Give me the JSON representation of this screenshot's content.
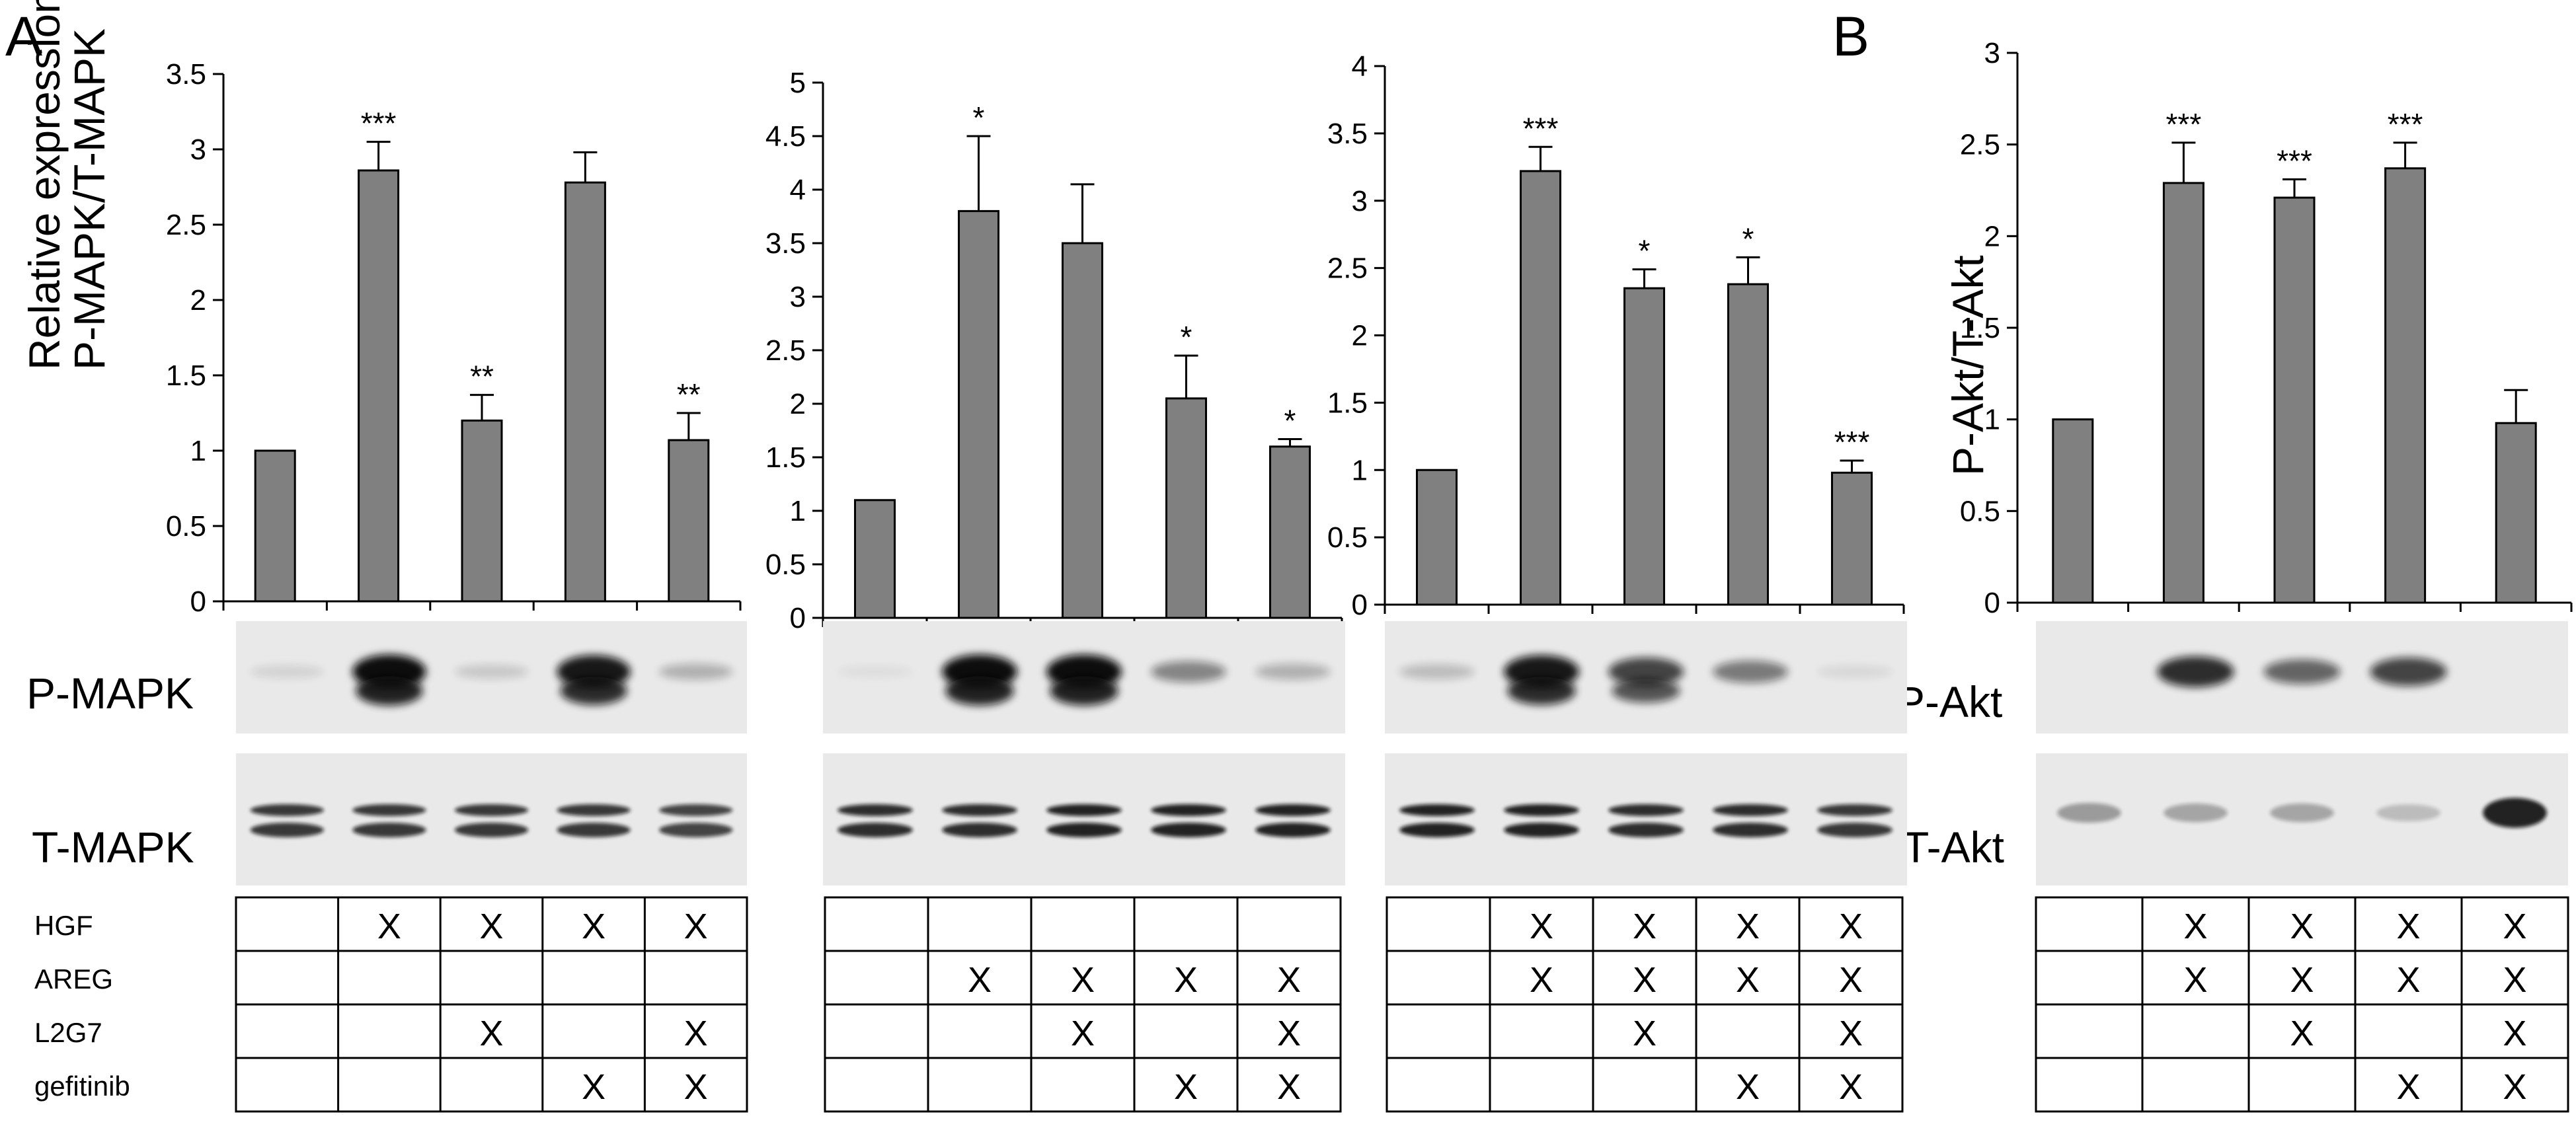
{
  "panel_labels": [
    "A",
    "B"
  ],
  "row_labels": [
    "HGF",
    "AREG",
    "L2G7",
    "gefitinib"
  ],
  "chart_data": [
    {
      "type": "bar",
      "panel": "A",
      "ylabel_line1": "Relative expression",
      "ylabel_line2": "P-MAPK/T-MAPK",
      "ylim": [
        0,
        3.5
      ],
      "yticks": [
        "0",
        "0.5",
        "1",
        "1.5",
        "2",
        "2.5",
        "3",
        "3.5"
      ],
      "ytick_values": [
        0,
        0.5,
        1,
        1.5,
        2,
        2.5,
        3,
        3.5
      ],
      "values": [
        1.0,
        2.86,
        1.2,
        2.78,
        1.07
      ],
      "errors": [
        0,
        0.19,
        0.17,
        0.2,
        0.18
      ],
      "significance": [
        "",
        "***",
        "**",
        "",
        "**"
      ],
      "bar_color": "#808080",
      "blot_labels": [
        "P-MAPK",
        "T-MAPK"
      ],
      "treatment": [
        [
          0,
          1,
          1,
          1,
          1
        ],
        [
          0,
          0,
          0,
          0,
          0
        ],
        [
          0,
          0,
          1,
          0,
          1
        ],
        [
          0,
          0,
          0,
          1,
          1
        ]
      ]
    },
    {
      "type": "bar",
      "panel": "A",
      "ylim": [
        0,
        5
      ],
      "yticks": [
        "0",
        "0.5",
        "1",
        "1.5",
        "2",
        "2.5",
        "3",
        "3.5",
        "4",
        "4.5",
        "5"
      ],
      "ytick_values": [
        0,
        0.5,
        1,
        1.5,
        2,
        2.5,
        3,
        3.5,
        4,
        4.5,
        5
      ],
      "values": [
        1.1,
        3.8,
        3.5,
        2.05,
        1.6
      ],
      "errors": [
        0,
        0.7,
        0.55,
        0.4,
        0.07
      ],
      "significance": [
        "",
        "*",
        "",
        "*",
        "*"
      ],
      "bar_color": "#808080",
      "blot_labels": [],
      "treatment": [
        [
          0,
          0,
          0,
          0,
          0
        ],
        [
          0,
          1,
          1,
          1,
          1
        ],
        [
          0,
          0,
          1,
          0,
          1
        ],
        [
          0,
          0,
          0,
          1,
          1
        ]
      ]
    },
    {
      "type": "bar",
      "panel": "A",
      "ylim": [
        0,
        4
      ],
      "yticks": [
        "0",
        "0.5",
        "1",
        "1.5",
        "2",
        "2.5",
        "3",
        "3.5",
        "4"
      ],
      "ytick_values": [
        0,
        0.5,
        1,
        1.5,
        2,
        2.5,
        3,
        3.5,
        4
      ],
      "values": [
        1.0,
        3.22,
        2.35,
        2.38,
        0.98
      ],
      "errors": [
        0,
        0.18,
        0.14,
        0.2,
        0.09
      ],
      "significance": [
        "",
        "***",
        "*",
        "*",
        "***"
      ],
      "bar_color": "#808080",
      "blot_labels": [],
      "treatment": [
        [
          0,
          1,
          1,
          1,
          1
        ],
        [
          0,
          1,
          1,
          1,
          1
        ],
        [
          0,
          0,
          1,
          0,
          1
        ],
        [
          0,
          0,
          0,
          1,
          1
        ]
      ]
    },
    {
      "type": "bar",
      "panel": "B",
      "ylabel_line1": "P-Akt/T-Akt",
      "ylim": [
        0,
        3
      ],
      "yticks": [
        "0",
        "0.5",
        "1",
        "1.5",
        "2",
        "2.5",
        "3"
      ],
      "ytick_values": [
        0,
        0.5,
        1,
        1.5,
        2,
        2.5,
        3
      ],
      "values": [
        1.0,
        2.29,
        2.21,
        2.37,
        0.98
      ],
      "errors": [
        0,
        0.22,
        0.1,
        0.14,
        0.18
      ],
      "significance": [
        "",
        "***",
        "***",
        "***",
        ""
      ],
      "bar_color": "#808080",
      "blot_labels": [
        "P-Akt",
        "T-Akt"
      ],
      "treatment": [
        [
          0,
          1,
          1,
          1,
          1
        ],
        [
          0,
          1,
          1,
          1,
          1
        ],
        [
          0,
          0,
          1,
          0,
          1
        ],
        [
          0,
          0,
          0,
          1,
          1
        ]
      ]
    }
  ]
}
